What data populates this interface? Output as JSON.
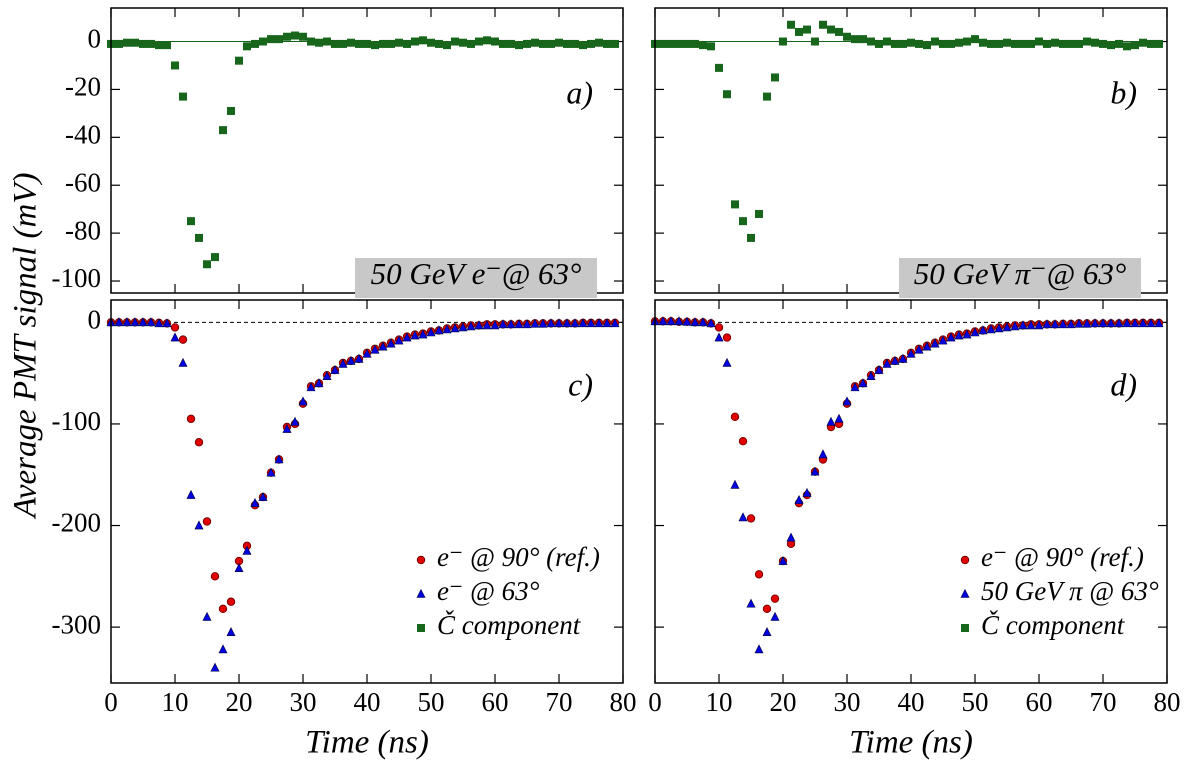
{
  "y_axis_label": "Average PMT signal (mV)",
  "chart_data": [
    {
      "type": "scatter",
      "panel_label": "a)",
      "box_label": "50 GeV e⁻@ 63°",
      "zero_line": "solid",
      "show_xtick_labels": false,
      "show_ytick_labels": true,
      "xlim": [
        0,
        80
      ],
      "xticks": [
        0,
        10,
        20,
        30,
        40,
        50,
        60,
        70,
        80
      ],
      "ylim": [
        -105,
        14
      ],
      "yticks": [
        0,
        -20,
        -40,
        -60,
        -80,
        -100
      ],
      "x": [
        0,
        1.25,
        2.5,
        3.75,
        5,
        6.25,
        7.5,
        8.75,
        10,
        11.25,
        12.5,
        13.75,
        15,
        16.25,
        17.5,
        18.75,
        20,
        21.25,
        22.5,
        23.75,
        25,
        26.25,
        27.5,
        28.75,
        30,
        31.25,
        32.5,
        33.75,
        35,
        36.25,
        37.5,
        38.75,
        40,
        41.25,
        42.5,
        43.75,
        45,
        46.25,
        47.5,
        48.75,
        50,
        51.25,
        52.5,
        53.75,
        55,
        56.25,
        57.5,
        58.75,
        60,
        61.25,
        62.5,
        63.75,
        65,
        66.25,
        67.5,
        68.75,
        70,
        71.25,
        72.5,
        73.75,
        75,
        76.25,
        77.5,
        78.75
      ],
      "series": [
        {
          "name": "Č component",
          "color": "#17661c",
          "marker": "square",
          "values": [
            -1,
            -1,
            -0.5,
            -0.5,
            -1,
            -1,
            -1.5,
            -1.5,
            -10,
            -23,
            -75,
            -82,
            -93,
            -90,
            -37,
            -29,
            -8,
            -2,
            -1,
            0,
            1,
            1,
            2,
            2.5,
            2,
            0,
            -0.5,
            0,
            -1,
            -1,
            -0.5,
            -1,
            -1,
            -1.5,
            -1,
            -1,
            -0.5,
            -1,
            0,
            0.5,
            -0.5,
            -1,
            -1.5,
            0,
            -0.5,
            -1,
            0,
            0.5,
            0,
            -1,
            -1,
            -1.5,
            -1,
            -0.5,
            -1,
            -1,
            -0.5,
            -1,
            -1,
            -1.5,
            -1,
            -0.5,
            -1,
            -1
          ]
        }
      ]
    },
    {
      "type": "scatter",
      "panel_label": "b)",
      "box_label": "50 GeV π⁻@ 63°",
      "zero_line": "solid",
      "show_xtick_labels": false,
      "show_ytick_labels": false,
      "xlim": [
        0,
        80
      ],
      "xticks": [
        0,
        10,
        20,
        30,
        40,
        50,
        60,
        70,
        80
      ],
      "ylim": [
        -105,
        14
      ],
      "yticks": [
        0,
        -20,
        -40,
        -60,
        -80,
        -100
      ],
      "x": [
        0,
        1.25,
        2.5,
        3.75,
        5,
        6.25,
        7.5,
        8.75,
        10,
        11.25,
        12.5,
        13.75,
        15,
        16.25,
        17.5,
        18.75,
        20,
        21.25,
        22.5,
        23.75,
        25,
        26.25,
        27.5,
        28.75,
        30,
        31.25,
        32.5,
        33.75,
        35,
        36.25,
        37.5,
        38.75,
        40,
        41.25,
        42.5,
        43.75,
        45,
        46.25,
        47.5,
        48.75,
        50,
        51.25,
        52.5,
        53.75,
        55,
        56.25,
        57.5,
        58.75,
        60,
        61.25,
        62.5,
        63.75,
        65,
        66.25,
        67.5,
        68.75,
        70,
        71.25,
        72.5,
        73.75,
        75,
        76.25,
        77.5,
        78.75
      ],
      "series": [
        {
          "name": "Č component",
          "color": "#17661c",
          "marker": "square",
          "values": [
            -1,
            -1,
            -1,
            -1,
            -1,
            -1,
            -1.5,
            -2,
            -11,
            -22,
            -68,
            -75,
            -82,
            -72,
            -23,
            -15,
            0,
            7,
            4,
            5,
            0,
            7,
            5,
            4,
            2,
            1,
            1,
            0,
            -1,
            0,
            -1,
            -1,
            -0.5,
            -1,
            -1.5,
            0,
            -1,
            -1,
            -0.5,
            0,
            1,
            -0.5,
            -1,
            -1,
            -0.5,
            -1,
            -1,
            -1,
            0,
            -1,
            -0.5,
            -1,
            -1,
            -1,
            0,
            -0.5,
            -1,
            -1.5,
            -1,
            -2,
            -1.5,
            -0.5,
            -1,
            -1
          ]
        }
      ]
    },
    {
      "type": "scatter",
      "panel_label": "c)",
      "x_axis_label": "Time (ns)",
      "zero_line": "dashed",
      "legend": "lower right",
      "show_xtick_labels": true,
      "show_ytick_labels": true,
      "xlim": [
        0,
        80
      ],
      "xticks": [
        0,
        10,
        20,
        30,
        40,
        50,
        60,
        70,
        80
      ],
      "ylim": [
        -355,
        22
      ],
      "yticks": [
        0,
        -100,
        -200,
        -300
      ],
      "x": [
        0,
        1.25,
        2.5,
        3.75,
        5,
        6.25,
        7.5,
        8.75,
        10,
        11.25,
        12.5,
        13.75,
        15,
        16.25,
        17.5,
        18.75,
        20,
        21.25,
        22.5,
        23.75,
        25,
        26.25,
        27.5,
        28.75,
        30,
        31.25,
        32.5,
        33.75,
        35,
        36.25,
        37.5,
        38.75,
        40,
        41.25,
        42.5,
        43.75,
        45,
        46.25,
        47.5,
        48.75,
        50,
        51.25,
        52.5,
        53.75,
        55,
        56.25,
        57.5,
        58.75,
        60,
        61.25,
        62.5,
        63.75,
        65,
        66.25,
        67.5,
        68.75,
        70,
        71.25,
        72.5,
        73.75,
        75,
        76.25,
        77.5,
        78.75
      ],
      "series": [
        {
          "name": "e⁻ @ 90° (ref.)",
          "color": "#e00000",
          "marker": "circle",
          "values": [
            0,
            0,
            0,
            0,
            0,
            0,
            -0.5,
            -1,
            -5,
            -17,
            -95,
            -118,
            -196,
            -250,
            -282,
            -275,
            -235,
            -220,
            -180,
            -172,
            -148,
            -135,
            -103,
            -100,
            -80,
            -63,
            -60,
            -52,
            -47,
            -40,
            -38,
            -36,
            -30,
            -26,
            -23,
            -20,
            -17,
            -14,
            -12,
            -11,
            -9,
            -8,
            -6,
            -5,
            -4,
            -3,
            -3,
            -2,
            -2,
            -2,
            -2,
            -1.5,
            -1.5,
            -1,
            -1,
            -1,
            -1,
            -1,
            -1,
            -0.5,
            -0.5,
            -0.5,
            -0.5,
            -0.5
          ]
        },
        {
          "name": "e⁻ @ 63°",
          "color": "#0000e0",
          "marker": "triangle",
          "values": [
            0,
            0,
            0,
            0,
            0,
            0,
            -1,
            -1,
            -15,
            -40,
            -170,
            -200,
            -290,
            -340,
            -322,
            -305,
            -242,
            -225,
            -178,
            -172,
            -148,
            -135,
            -105,
            -98,
            -78,
            -64,
            -60,
            -53,
            -47,
            -41,
            -38,
            -36,
            -31,
            -27,
            -24,
            -21,
            -18,
            -15,
            -13,
            -12,
            -10,
            -8,
            -7,
            -6,
            -5,
            -4,
            -3,
            -3,
            -3,
            -2,
            -2,
            -2,
            -2,
            -1.5,
            -1.5,
            -1,
            -1,
            -1,
            -1,
            -1,
            -1,
            -1,
            -1,
            -1
          ]
        }
      ]
    },
    {
      "type": "scatter",
      "panel_label": "d)",
      "x_axis_label": "Time (ns)",
      "zero_line": "dashed",
      "legend": "lower right",
      "show_xtick_labels": true,
      "show_ytick_labels": false,
      "xlim": [
        0,
        80
      ],
      "xticks": [
        0,
        10,
        20,
        30,
        40,
        50,
        60,
        70,
        80
      ],
      "ylim": [
        -355,
        22
      ],
      "yticks": [
        0,
        -100,
        -200,
        -300
      ],
      "x": [
        0,
        1.25,
        2.5,
        3.75,
        5,
        6.25,
        7.5,
        8.75,
        10,
        11.25,
        12.5,
        13.75,
        15,
        16.25,
        17.5,
        18.75,
        20,
        21.25,
        22.5,
        23.75,
        25,
        26.25,
        27.5,
        28.75,
        30,
        31.25,
        32.5,
        33.75,
        35,
        36.25,
        37.5,
        38.75,
        40,
        41.25,
        42.5,
        43.75,
        45,
        46.25,
        47.5,
        48.75,
        50,
        51.25,
        52.5,
        53.75,
        55,
        56.25,
        57.5,
        58.75,
        60,
        61.25,
        62.5,
        63.75,
        65,
        66.25,
        67.5,
        68.75,
        70,
        71.25,
        72.5,
        73.75,
        75,
        76.25,
        77.5,
        78.75
      ],
      "series": [
        {
          "name": "e⁻ @  90° (ref.)",
          "color": "#e00000",
          "marker": "circle",
          "values": [
            1,
            1,
            1,
            0.5,
            0.5,
            0,
            0,
            -1,
            -5,
            -15,
            -93,
            -117,
            -193,
            -248,
            -282,
            -272,
            -235,
            -218,
            -178,
            -170,
            -147,
            -135,
            -103,
            -100,
            -80,
            -63,
            -60,
            -52,
            -47,
            -40,
            -38,
            -36,
            -30,
            -26,
            -23,
            -20,
            -17,
            -14,
            -12,
            -11,
            -9,
            -8,
            -6,
            -5,
            -4,
            -3,
            -3,
            -2,
            -2,
            -2,
            -2,
            -1.5,
            -1.5,
            -1,
            -1,
            -1,
            -1,
            -1,
            -1,
            -0.5,
            -0.5,
            -0.5,
            -0.5,
            -0.5
          ]
        },
        {
          "name": "50 GeV π @ 63°",
          "color": "#0000e0",
          "marker": "triangle",
          "values": [
            1,
            1,
            1,
            1,
            0.5,
            0,
            0,
            -1,
            -15,
            -40,
            -160,
            -192,
            -277,
            -322,
            -305,
            -290,
            -235,
            -212,
            -175,
            -168,
            -147,
            -130,
            -98,
            -95,
            -78,
            -64,
            -60,
            -53,
            -47,
            -41,
            -38,
            -36,
            -31,
            -27,
            -24,
            -21,
            -18,
            -15,
            -13,
            -12,
            -10,
            -8,
            -7,
            -6,
            -5,
            -4,
            -3,
            -3,
            -3,
            -2,
            -2,
            -2,
            -2,
            -1.5,
            -1.5,
            -1,
            -1,
            -1,
            -1,
            -1,
            -1,
            -1,
            -1,
            -1
          ]
        }
      ]
    }
  ]
}
